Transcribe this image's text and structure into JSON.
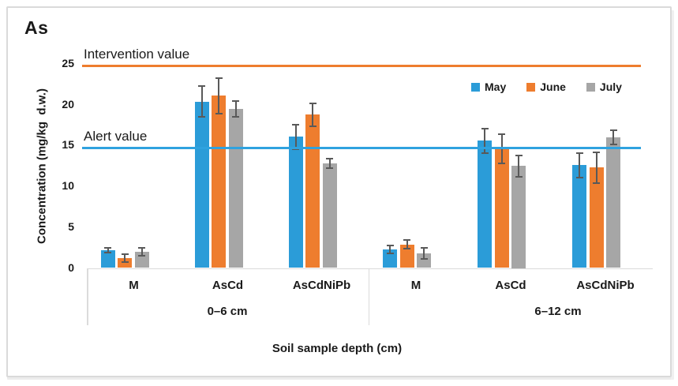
{
  "figure": {
    "background": "#FFFFFF",
    "border_color": "#DADADA"
  },
  "chart_data": {
    "type": "bar",
    "title": "As",
    "ylabel": "Concentration (mg/kg  d.w.)",
    "xlabel": "Soil sample depth (cm)",
    "ylim": [
      0,
      25
    ],
    "yticks": [
      0,
      5,
      10,
      15,
      20,
      25
    ],
    "grid": false,
    "legend_position": "top-right",
    "groups": [
      {
        "label": "0–6 cm",
        "categories": [
          "M",
          "AsCd",
          "AsCdNiPb"
        ]
      },
      {
        "label": "6–12 cm",
        "categories": [
          "M",
          "AsCd",
          "AsCdNiPb"
        ]
      }
    ],
    "series": [
      {
        "name": "May",
        "color": "#2B9CD8",
        "values": [
          2.2,
          20.4,
          16.1,
          2.3,
          15.6,
          12.6
        ],
        "errors": [
          0.3,
          1.9,
          1.5,
          0.5,
          1.5,
          1.5
        ]
      },
      {
        "name": "June",
        "color": "#EE7D2E",
        "values": [
          1.2,
          21.1,
          18.8,
          2.9,
          14.6,
          12.3
        ],
        "errors": [
          0.5,
          2.2,
          1.4,
          0.5,
          1.8,
          1.9
        ]
      },
      {
        "name": "July",
        "color": "#A6A6A6",
        "values": [
          2.0,
          19.5,
          12.8,
          1.8,
          12.5,
          16.0
        ],
        "errors": [
          0.5,
          1.0,
          0.6,
          0.7,
          1.3,
          0.9
        ]
      }
    ],
    "reference_lines": [
      {
        "label": "Intervention value",
        "value": 24.8,
        "color": "#EE7D2E"
      },
      {
        "label": "Alert value",
        "value": 14.7,
        "color": "#2FA2DF"
      }
    ],
    "error_bar_color": "#595959",
    "axis_color": "#DBDBDB",
    "text_color": "#1A1A1A"
  }
}
